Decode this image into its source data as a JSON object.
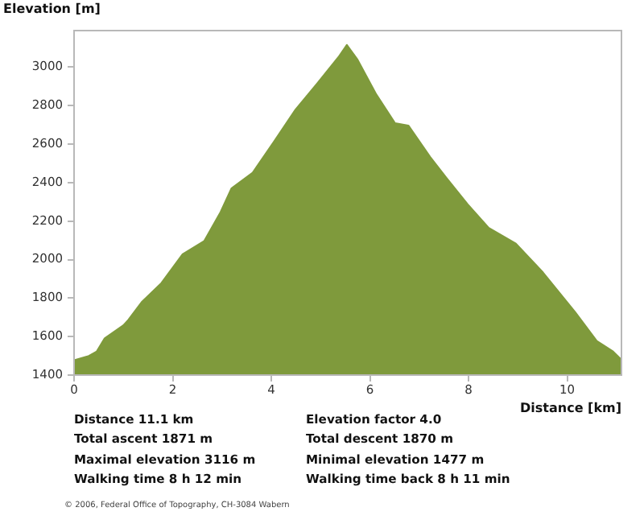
{
  "chart_data": {
    "type": "area",
    "ylabel": "Elevation [m]",
    "xlabel": "Distance [km]",
    "x": [
      0,
      0.3,
      0.46,
      0.62,
      1.0,
      1.1,
      1.38,
      1.77,
      2.2,
      2.64,
      2.97,
      3.19,
      3.62,
      4.06,
      4.49,
      4.93,
      5.36,
      5.53,
      5.75,
      6.13,
      6.51,
      6.78,
      7.22,
      7.55,
      7.98,
      8.41,
      8.96,
      9.51,
      10.16,
      10.6,
      10.93,
      11.1
    ],
    "series": [
      {
        "color": "#7f9a3c",
        "values": [
          1477,
          1500,
          1523,
          1591,
          1659,
          1687,
          1782,
          1878,
          2028,
          2097,
          2247,
          2370,
          2452,
          2616,
          2780,
          2916,
          3052,
          3116,
          3039,
          2858,
          2709,
          2697,
          2534,
          2425,
          2288,
          2165,
          2083,
          1933,
          1728,
          1577,
          1523,
          1480
        ]
      }
    ],
    "xlim": [
      0,
      11.1
    ],
    "xticks": [
      0,
      2,
      4,
      6,
      8,
      10
    ],
    "ylim": [
      1400,
      3190
    ],
    "yticks": [
      1400,
      1600,
      1800,
      2000,
      2200,
      2400,
      2600,
      2800,
      3000
    ],
    "grid": false,
    "legend": false,
    "marker": "none",
    "annotations": [
      "Distance 11.1 km",
      "Total ascent  1871 m",
      "Maximal elevation  3116 m",
      "Walking time  8 h 12 min",
      "Elevation factor 4.0",
      "Total descent  1870 m",
      "Minimal elevation  1477 m",
      "Walking time back  8 h 11 min",
      "© 2006, Federal Office of Topography, CH-3084 Wabern"
    ]
  }
}
